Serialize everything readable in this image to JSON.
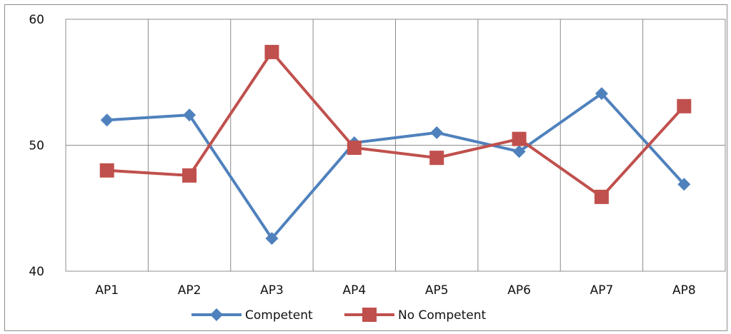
{
  "chart_data": {
    "type": "line",
    "categories": [
      "AP1",
      "AP2",
      "AP3",
      "AP4",
      "AP5",
      "AP6",
      "AP7",
      "AP8"
    ],
    "ylim": [
      40,
      60
    ],
    "yticks": [
      40,
      50,
      60
    ],
    "grid": true,
    "legend_placement": "bottom",
    "series": [
      {
        "name": "Competent",
        "color": "#4F81BD",
        "marker": "diamond",
        "values": [
          52.0,
          52.4,
          42.6,
          50.2,
          51.0,
          49.5,
          54.1,
          46.9
        ]
      },
      {
        "name": "No Competent",
        "color": "#C0504D",
        "marker": "square",
        "values": [
          48.0,
          47.6,
          57.4,
          49.8,
          49.0,
          50.5,
          45.9,
          53.1
        ]
      }
    ]
  }
}
